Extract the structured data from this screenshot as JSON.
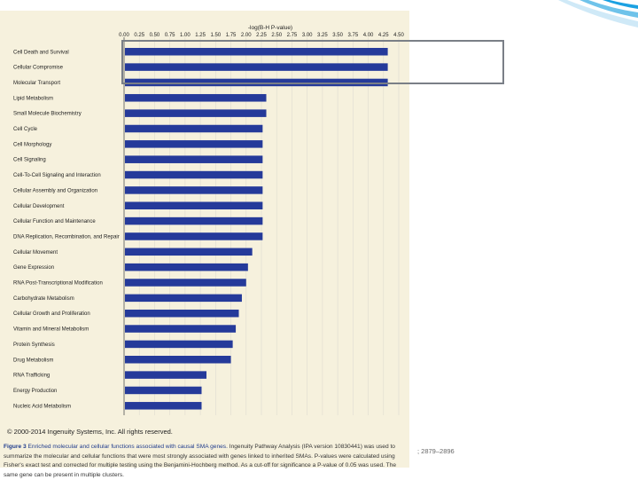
{
  "slide": {
    "copyright": "© 2000-2014 Ingenuity Systems, Inc. All rights reserved.",
    "caption_label": "Figure 3",
    "caption_title": "Enriched molecular and cellular functions associated with causal SMA genes.",
    "caption_body": "Ingenuity Pathway Analysis (IPA version 10830441) was used to summarize the molecular and cellular functions that were most strongly associated with genes linked to inherited SMAs. P-values were calculated using Fisher's exact test and corrected for multiple testing using the Benjamini-Hochberg method. As a cut-off for significance a P-value of 0.05 was used. The same gene can be present in multiple clusters.",
    "page_ref": "; 2879–2896",
    "colors": {
      "bar": "#253a9a",
      "panel": "#f6f1dd",
      "highlight": "#7a7f87",
      "accent": "#1ba1e2"
    }
  },
  "chart_data": {
    "type": "bar",
    "orientation": "horizontal",
    "title": "",
    "xlabel": "-log(B-H P-value)",
    "ylabel": "",
    "xlim": [
      0,
      4.5
    ],
    "xticks": [
      "0.00",
      "0.25",
      "0.50",
      "0.75",
      "1.00",
      "1.25",
      "1.50",
      "1.75",
      "2.00",
      "2.25",
      "2.50",
      "2.75",
      "3.00",
      "3.25",
      "3.50",
      "3.75",
      "4.00",
      "4.25",
      "4.50"
    ],
    "grid": true,
    "categories": [
      "Cell Death and Survival",
      "Cellular Compromise",
      "Molecular Transport",
      "Lipid Metabolism",
      "Small Molecule Biochemistry",
      "Cell Cycle",
      "Cell Morphology",
      "Cell Signaling",
      "Cell-To-Cell Signaling and Interaction",
      "Cellular Assembly and Organization",
      "Cellular Development",
      "Cellular Function and Maintenance",
      "DNA Replication, Recombination, and Repair",
      "Cellular Movement",
      "Gene Expression",
      "RNA Post-Transcriptional Modification",
      "Carbohydrate Metabolism",
      "Cellular Growth and Proliferation",
      "Vitamin and Mineral Metabolism",
      "Protein Synthesis",
      "Drug Metabolism",
      "RNA Trafficking",
      "Energy Production",
      "Nucleic Acid Metabolism"
    ],
    "values": [
      4.32,
      4.32,
      4.32,
      2.33,
      2.33,
      2.27,
      2.27,
      2.27,
      2.27,
      2.27,
      2.27,
      2.27,
      2.27,
      2.1,
      2.03,
      2.0,
      1.93,
      1.88,
      1.83,
      1.78,
      1.75,
      1.35,
      1.27,
      1.27
    ]
  }
}
